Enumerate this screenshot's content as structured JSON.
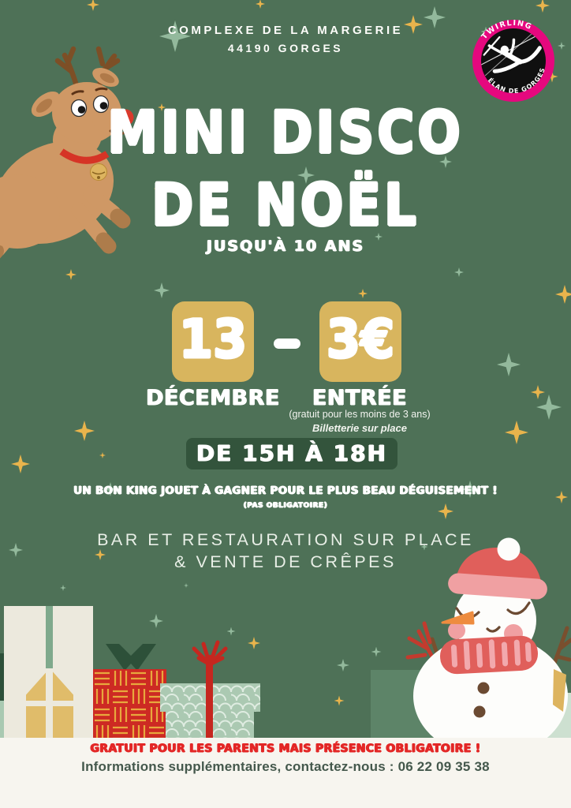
{
  "poster": {
    "venue": {
      "line1": "COMPLEXE DE LA MARGERIE",
      "line2": "44190 GORGES"
    },
    "logo": {
      "arc_top": "TWIRLING",
      "arc_bottom": "ÉLAN DE GORGES"
    },
    "title": {
      "line1": "MINI DISCO",
      "line2": "DE NOËL",
      "age_limit": "JUSQU'À 10 ANS"
    },
    "date": {
      "day": "13",
      "month": "DÉCEMBRE"
    },
    "separator": "-",
    "price": {
      "amount": "3€",
      "label": "ENTRÉE",
      "note_free": "(gratuit pour les moins de 3 ans)",
      "note_ticketing": "Billetterie sur place"
    },
    "time": "DE 15H À 18H",
    "contest": {
      "text": "UN BON KING JOUET À GAGNER POUR LE PLUS BEAU DÉGUISEMENT !",
      "note": "(PAS OBLIGATOIRE)"
    },
    "food": {
      "line1": "BAR ET RESTAURATION SUR PLACE",
      "line2": "& VENTE DE CRÊPES"
    },
    "footer": {
      "parents_notice": "GRATUIT POUR LES PARENTS MAIS PRÉSENCE OBLIGATOIRE !",
      "contact": "Informations supplémentaires, contactez-nous : 06 22 09 35 38"
    }
  },
  "colors": {
    "background": "#4e7157",
    "banner_green": "#33543c",
    "gold": "#d8b55e",
    "star_gold": "#e9b44c",
    "star_sage": "#93b99c",
    "logo_pink": "#e5087e",
    "footer_red": "#e32726",
    "footer_text": "#44584c",
    "footer_strip": "#f7f5ef"
  }
}
